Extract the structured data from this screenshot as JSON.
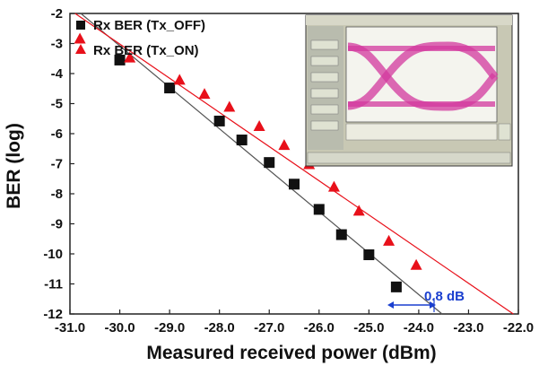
{
  "chart_data": {
    "type": "scatter",
    "title": "",
    "xlabel": "Measured received power (dBm)",
    "ylabel": "BER (log)",
    "xlim": [
      -31.0,
      -22.0
    ],
    "ylim": [
      -12,
      -2
    ],
    "x_ticks": [
      "-31.0",
      "-30.0",
      "-29.0",
      "-28.0",
      "-27.0",
      "-26.0",
      "-25.0",
      "-24.0",
      "-23.0",
      "-22.0"
    ],
    "y_ticks": [
      "-2",
      "-3",
      "-4",
      "-5",
      "-6",
      "-7",
      "-8",
      "-9",
      "-10",
      "-11",
      "-12"
    ],
    "legend_position": "top-left",
    "series": [
      {
        "name": "Rx BER (Tx_OFF)",
        "marker": "square",
        "color": "#111111",
        "fit_line_color": "#555555",
        "x": [
          -30.0,
          -29.0,
          -28.0,
          -27.55,
          -27.0,
          -26.5,
          -26.0,
          -25.55,
          -25.0,
          -24.45
        ],
        "y": [
          -3.55,
          -4.48,
          -5.58,
          -6.21,
          -6.96,
          -7.68,
          -8.52,
          -9.36,
          -10.03,
          -11.1
        ]
      },
      {
        "name": "Rx BER (Tx_ON)",
        "marker": "triangle",
        "color": "#e8101a",
        "fit_line_color": "#e8101a",
        "x": [
          -30.8,
          -29.8,
          -28.8,
          -28.3,
          -27.8,
          -27.2,
          -26.7,
          -26.2,
          -25.7,
          -25.2,
          -24.6,
          -24.05
        ],
        "y": [
          -2.85,
          -3.48,
          -4.22,
          -4.69,
          -5.12,
          -5.76,
          -6.39,
          -7.03,
          -7.78,
          -8.58,
          -9.58,
          -10.38
        ]
      }
    ],
    "annotations": [
      {
        "text": "0.8 dB",
        "from_x": -24.5,
        "to_x": -23.7,
        "y": -11.6,
        "color": "#1a3fcf"
      }
    ],
    "inset": {
      "description_label": "eye-diagram"
    }
  }
}
